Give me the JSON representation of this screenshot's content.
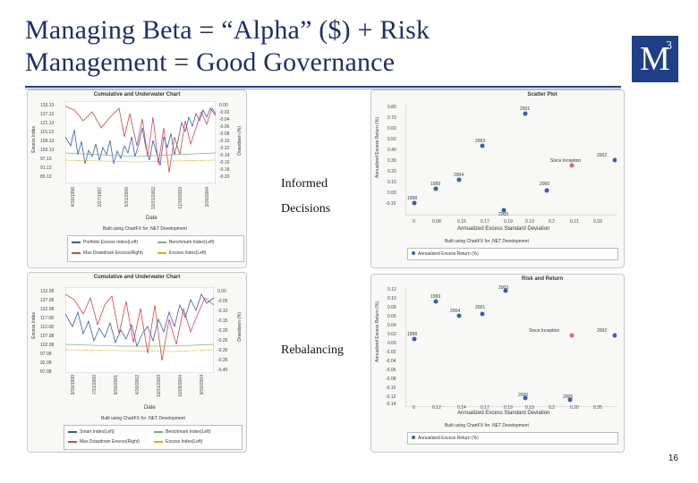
{
  "slide": {
    "title_line1": "Managing Beta = “Alpha” ($) + Risk",
    "title_line2": "Management = Good Governance",
    "page_number": "16"
  },
  "logo": {
    "letter": "M",
    "superscript": "3"
  },
  "overlays": {
    "informed": "Informed",
    "decisions": "Decisions",
    "rebalancing": "Rebalancing"
  },
  "top_left_chart": {
    "title": "Cumulative and Underwater Chart",
    "ylabel": "Excess Index",
    "y2label": "Drawdown (%)",
    "xlabel": "Date",
    "yticks": [
      "133.13",
      "127.13",
      "121.13",
      "115.13",
      "109.13",
      "103.13",
      "97.13",
      "91.13",
      "85.13"
    ],
    "y2ticks": [
      "0.00",
      "-0.02",
      "-0.04",
      "-0.06",
      "-0.08",
      "-0.10",
      "-0.12",
      "-0.14",
      "-0.16",
      "-0.18",
      "-0.20"
    ],
    "xticks": [
      "4/30/1996",
      "2/27/1997",
      "5/31/2000",
      "10/31/2002",
      "11/30/2003",
      "3/30/2004"
    ],
    "legend_title": "Built using ChartFX for .NET Development",
    "legend_items": [
      "Portfolio Excess Index(Left)",
      "Benchmark Index(Left)",
      "Max Drawdown Excess(Right)",
      "Excess Index(Left)"
    ]
  },
  "bottom_left_chart": {
    "title": "Cumulative and Underwater Chart",
    "ylabel": "Excess Index",
    "y2label": "Drawdown (%)",
    "xlabel": "Date",
    "yticks": [
      "132.08",
      "127.08",
      "122.08",
      "117.08",
      "112.08",
      "107.08",
      "102.08",
      "97.08",
      "92.08",
      "87.08"
    ],
    "y2ticks": [
      "0.00",
      "-0.05",
      "-0.10",
      "-0.15",
      "-0.20",
      "-0.25",
      "-0.30",
      "-0.35",
      "-0.40"
    ],
    "xticks": [
      "9/30/1999",
      "7/31/2000",
      "9/30/2001",
      "4/30/2002",
      "10/31/2003",
      "10/29/2004",
      "9/30/2004"
    ],
    "legend_title": "Built using ChartFX for .NET Development",
    "legend_items": [
      "Smart Index(Left)",
      "Benchmark Index(Left)",
      "Max Drawdown Excess(Right)",
      "Excess Index(Left)"
    ]
  },
  "top_right_chart": {
    "title": "Scatter Plot",
    "ylabel": "Annualized Excess Return (%)",
    "xlabel": "Annualized Excess Standard Deviation",
    "yticks": [
      "0.80",
      "0.70",
      "0.60",
      "0.50",
      "0.40",
      "0.30",
      "0.20",
      "0.10",
      "0.00",
      "-0.10"
    ],
    "xticks": [
      "0",
      "0.08",
      "0.15",
      "0.17",
      "0.19",
      "0.19",
      "0.2",
      "0.21",
      "0.33"
    ],
    "legend_title": "Built using ChartFX for .NET Development",
    "legend_item": "Annualized Excess Return (%)",
    "points": [
      "2001",
      "2003",
      "2002",
      "Since Inception",
      "2004",
      "1999",
      "2000",
      "1998",
      "2005"
    ]
  },
  "bottom_right_chart": {
    "title": "Risk and Return",
    "ylabel": "Annualized Excess Return (%)",
    "xlabel": "Annualized Excess Standard Deviation",
    "yticks": [
      "0.12",
      "0.10",
      "0.08",
      "0.06",
      "0.04",
      "0.02",
      "0.00",
      "-0.02",
      "-0.04",
      "-0.06",
      "-0.08",
      "-0.10",
      "-0.12",
      "-0.14"
    ],
    "xticks": [
      "0",
      "0.12",
      "0.14",
      "0.17",
      "0.19",
      "0.19",
      "0.2",
      "0.20",
      "0.35"
    ],
    "legend_title": "Built using ChartFX for .NET Development",
    "legend_item": "Annualized Excess Return (%)",
    "points": [
      "2003",
      "1999",
      "2004",
      "2001",
      "Since Inception",
      "2002",
      "1998",
      "2000",
      "2005"
    ]
  },
  "colors": {
    "title": "#1f2e6b",
    "logo_bg": "#1f3f86",
    "portfolio": "#3b5bb5",
    "benchmark": "#7fb07f",
    "drawdown": "#d04848",
    "excess": "#d8b000",
    "point": "#3b5bb5",
    "point_special": "#cc6f8a"
  }
}
